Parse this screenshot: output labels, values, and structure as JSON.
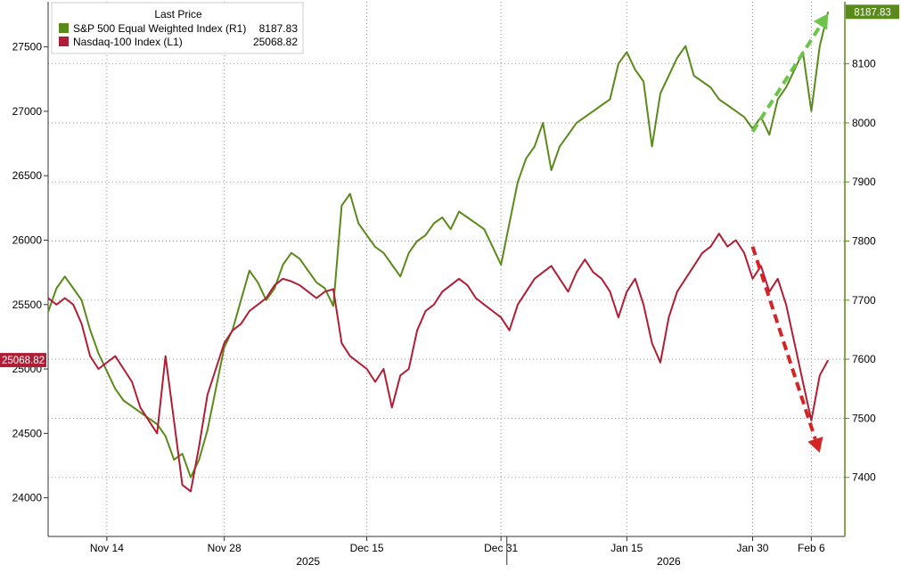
{
  "legend": {
    "title": "Last Price",
    "items": [
      {
        "label": "S&P 500 Equal Weighted Index  (R1)",
        "value": "8187.83",
        "color": "#5a8a1a"
      },
      {
        "label": "Nasdaq-100 Index  (L1)",
        "value": "25068.82",
        "color": "#b01e35"
      }
    ]
  },
  "chart_data": {
    "type": "line",
    "x_ticks": [
      {
        "label": "Nov 14",
        "day": 7
      },
      {
        "label": "Nov 28",
        "day": 21
      },
      {
        "label": "Dec 15",
        "day": 38
      },
      {
        "label": "Dec 31",
        "day": 54
      },
      {
        "label": "Jan 15",
        "day": 69
      },
      {
        "label": "Jan 30",
        "day": 84
      },
      {
        "label": "Feb 6",
        "day": 91
      }
    ],
    "year_labels": [
      {
        "label": "2025",
        "day": 31
      },
      {
        "label": "2026",
        "day": 74
      }
    ],
    "left_axis": {
      "ylim": [
        23700,
        27850
      ],
      "ticks": [
        24000,
        24500,
        25000,
        25500,
        26000,
        26500,
        27000,
        27500
      ]
    },
    "right_axis": {
      "ylim": [
        7300,
        8205
      ],
      "ticks": [
        7400,
        7500,
        7600,
        7700,
        7800,
        7900,
        8000,
        8100
      ]
    },
    "grid": true,
    "legend_position": "top-left",
    "series": [
      {
        "name": "S&P 500 Equal Weighted Index (R1)",
        "axis": "right",
        "color": "#5a8a1a",
        "last_value": "8187.83",
        "points": [
          [
            0,
            7680
          ],
          [
            1,
            7720
          ],
          [
            2,
            7740
          ],
          [
            3,
            7720
          ],
          [
            4,
            7700
          ],
          [
            5,
            7650
          ],
          [
            6,
            7610
          ],
          [
            7,
            7580
          ],
          [
            8,
            7550
          ],
          [
            9,
            7530
          ],
          [
            10,
            7520
          ],
          [
            11,
            7510
          ],
          [
            12,
            7500
          ],
          [
            13,
            7490
          ],
          [
            14,
            7470
          ],
          [
            15,
            7430
          ],
          [
            16,
            7440
          ],
          [
            17,
            7400
          ],
          [
            18,
            7430
          ],
          [
            19,
            7480
          ],
          [
            20,
            7550
          ],
          [
            21,
            7620
          ],
          [
            22,
            7650
          ],
          [
            23,
            7700
          ],
          [
            24,
            7750
          ],
          [
            25,
            7730
          ],
          [
            26,
            7700
          ],
          [
            27,
            7720
          ],
          [
            28,
            7760
          ],
          [
            29,
            7780
          ],
          [
            30,
            7770
          ],
          [
            31,
            7750
          ],
          [
            32,
            7730
          ],
          [
            33,
            7720
          ],
          [
            34,
            7690
          ],
          [
            35,
            7860
          ],
          [
            36,
            7880
          ],
          [
            37,
            7830
          ],
          [
            38,
            7810
          ],
          [
            39,
            7790
          ],
          [
            40,
            7780
          ],
          [
            41,
            7760
          ],
          [
            42,
            7740
          ],
          [
            43,
            7780
          ],
          [
            44,
            7800
          ],
          [
            45,
            7810
          ],
          [
            46,
            7830
          ],
          [
            47,
            7840
          ],
          [
            48,
            7820
          ],
          [
            49,
            7850
          ],
          [
            50,
            7840
          ],
          [
            51,
            7830
          ],
          [
            52,
            7820
          ],
          [
            53,
            7790
          ],
          [
            54,
            7760
          ],
          [
            55,
            7830
          ],
          [
            56,
            7900
          ],
          [
            57,
            7940
          ],
          [
            58,
            7960
          ],
          [
            59,
            8000
          ],
          [
            60,
            7920
          ],
          [
            61,
            7960
          ],
          [
            62,
            7980
          ],
          [
            63,
            8000
          ],
          [
            64,
            8010
          ],
          [
            65,
            8020
          ],
          [
            66,
            8030
          ],
          [
            67,
            8040
          ],
          [
            68,
            8100
          ],
          [
            69,
            8120
          ],
          [
            70,
            8090
          ],
          [
            71,
            8070
          ],
          [
            72,
            7960
          ],
          [
            73,
            8050
          ],
          [
            74,
            8080
          ],
          [
            75,
            8110
          ],
          [
            76,
            8130
          ],
          [
            77,
            8080
          ],
          [
            78,
            8070
          ],
          [
            79,
            8060
          ],
          [
            80,
            8040
          ],
          [
            81,
            8030
          ],
          [
            82,
            8020
          ],
          [
            83,
            8010
          ],
          [
            84,
            7990
          ],
          [
            85,
            8010
          ],
          [
            86,
            7980
          ],
          [
            87,
            8040
          ],
          [
            88,
            8060
          ],
          [
            89,
            8090
          ],
          [
            90,
            8120
          ],
          [
            91,
            8020
          ],
          [
            92,
            8130
          ],
          [
            93,
            8188
          ]
        ]
      },
      {
        "name": "Nasdaq-100 Index (L1)",
        "axis": "left",
        "color": "#b01e35",
        "last_value": "25068.82",
        "points": [
          [
            0,
            25550
          ],
          [
            1,
            25500
          ],
          [
            2,
            25550
          ],
          [
            3,
            25500
          ],
          [
            4,
            25350
          ],
          [
            5,
            25100
          ],
          [
            6,
            25000
          ],
          [
            7,
            25050
          ],
          [
            8,
            25100
          ],
          [
            9,
            25000
          ],
          [
            10,
            24900
          ],
          [
            11,
            24700
          ],
          [
            12,
            24600
          ],
          [
            13,
            24500
          ],
          [
            14,
            25100
          ],
          [
            15,
            24600
          ],
          [
            16,
            24100
          ],
          [
            17,
            24050
          ],
          [
            18,
            24400
          ],
          [
            19,
            24800
          ],
          [
            20,
            25000
          ],
          [
            21,
            25200
          ],
          [
            22,
            25300
          ],
          [
            23,
            25350
          ],
          [
            24,
            25450
          ],
          [
            25,
            25500
          ],
          [
            26,
            25550
          ],
          [
            27,
            25650
          ],
          [
            28,
            25700
          ],
          [
            29,
            25680
          ],
          [
            30,
            25650
          ],
          [
            31,
            25600
          ],
          [
            32,
            25550
          ],
          [
            33,
            25600
          ],
          [
            34,
            25620
          ],
          [
            35,
            25200
          ],
          [
            36,
            25100
          ],
          [
            37,
            25050
          ],
          [
            38,
            25000
          ],
          [
            39,
            24900
          ],
          [
            40,
            25000
          ],
          [
            41,
            24700
          ],
          [
            42,
            24950
          ],
          [
            43,
            25000
          ],
          [
            44,
            25300
          ],
          [
            45,
            25450
          ],
          [
            46,
            25500
          ],
          [
            47,
            25600
          ],
          [
            48,
            25650
          ],
          [
            49,
            25700
          ],
          [
            50,
            25650
          ],
          [
            51,
            25550
          ],
          [
            52,
            25500
          ],
          [
            53,
            25450
          ],
          [
            54,
            25400
          ],
          [
            55,
            25300
          ],
          [
            56,
            25500
          ],
          [
            57,
            25600
          ],
          [
            58,
            25700
          ],
          [
            59,
            25750
          ],
          [
            60,
            25800
          ],
          [
            61,
            25700
          ],
          [
            62,
            25600
          ],
          [
            63,
            25750
          ],
          [
            64,
            25850
          ],
          [
            65,
            25750
          ],
          [
            66,
            25700
          ],
          [
            67,
            25600
          ],
          [
            68,
            25400
          ],
          [
            69,
            25600
          ],
          [
            70,
            25700
          ],
          [
            71,
            25500
          ],
          [
            72,
            25200
          ],
          [
            73,
            25050
          ],
          [
            74,
            25400
          ],
          [
            75,
            25600
          ],
          [
            76,
            25700
          ],
          [
            77,
            25800
          ],
          [
            78,
            25900
          ],
          [
            79,
            25950
          ],
          [
            80,
            26050
          ],
          [
            81,
            25950
          ],
          [
            82,
            26000
          ],
          [
            83,
            25900
          ],
          [
            84,
            25700
          ],
          [
            85,
            25800
          ],
          [
            86,
            25600
          ],
          [
            87,
            25700
          ],
          [
            88,
            25500
          ],
          [
            89,
            25200
          ],
          [
            90,
            24900
          ],
          [
            91,
            24600
          ],
          [
            92,
            24950
          ],
          [
            93,
            25069
          ]
        ]
      }
    ],
    "annotations": [
      {
        "type": "dashed-arrow",
        "color": "#6cc44a",
        "from": [
          84,
          7985
        ],
        "to": [
          93,
          8185
        ],
        "axis": "right"
      },
      {
        "type": "dashed-arrow",
        "color": "#d42525",
        "from": [
          84,
          25950
        ],
        "to": [
          92,
          24350
        ],
        "axis": "left"
      }
    ]
  }
}
